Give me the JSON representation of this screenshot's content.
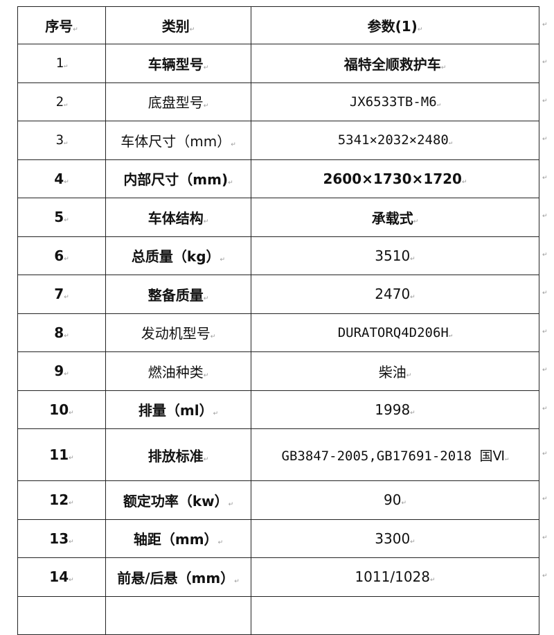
{
  "header": {
    "no": "序号",
    "category": "类别",
    "value": "参数(1)"
  },
  "rows": [
    {
      "no": "1",
      "category": "车辆型号",
      "value": "福特全顺救护车"
    },
    {
      "no": "2",
      "category": "底盘型号",
      "value": "JX6533TB-M6"
    },
    {
      "no": "3",
      "category": "车体尺寸（mm）",
      "value": "5341×2032×2480"
    },
    {
      "no": "4",
      "category": "内部尺寸（mm)",
      "value": "2600×1730×1720"
    },
    {
      "no": "5",
      "category": "车体结构",
      "value": "承载式"
    },
    {
      "no": "6",
      "category": "总质量（kg）",
      "value": "3510"
    },
    {
      "no": "7",
      "category": "整备质量",
      "value": "2470"
    },
    {
      "no": "8",
      "category": "发动机型号",
      "value": "DURATORQ4D206H"
    },
    {
      "no": "9",
      "category": "燃油种类",
      "value": "柴油"
    },
    {
      "no": "10",
      "category": "排量（ml）",
      "value": "1998"
    },
    {
      "no": "11",
      "category": "排放标准",
      "value": "GB3847-2005,GB17691-2018 国Ⅵ"
    },
    {
      "no": "12",
      "category": "额定功率（kw）",
      "value": "90"
    },
    {
      "no": "13",
      "category": "轴距（mm）",
      "value": "3300"
    },
    {
      "no": "14",
      "category": "前悬/后悬（mm）",
      "value": "1011/1028"
    }
  ]
}
